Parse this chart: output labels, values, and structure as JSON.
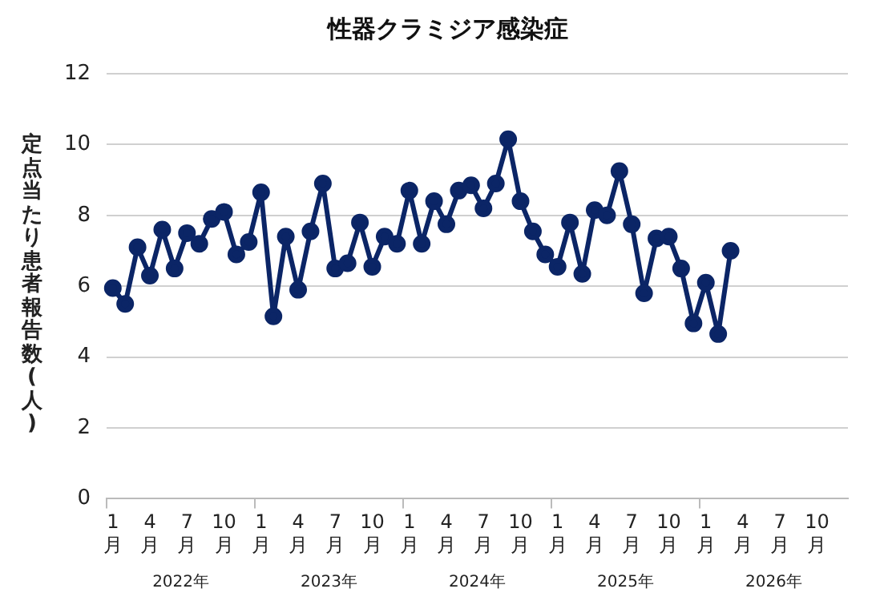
{
  "chart_data": {
    "type": "line",
    "title": "性器クラミジア感染症",
    "ylabel": "定点当たり患者報告数(人)",
    "categories": [
      "1月",
      null,
      null,
      "4月",
      null,
      null,
      "7月",
      null,
      null,
      "10月",
      null,
      null,
      "1月",
      null,
      null,
      "4月",
      null,
      null,
      "7月",
      null,
      null,
      "10月",
      null,
      null,
      "1月",
      null,
      null,
      "4月",
      null,
      null,
      "7月",
      null,
      null,
      "10月",
      null,
      null,
      "1月",
      null,
      null,
      "4月",
      null,
      null,
      "7月",
      null,
      null,
      "10月",
      null,
      null,
      "1月",
      null,
      null,
      "4月",
      null,
      null,
      "7月",
      null,
      null,
      "10月",
      null,
      null
    ],
    "series": [
      {
        "color": "#0b2566",
        "values": [
          5.95,
          5.5,
          7.1,
          6.3,
          7.6,
          6.5,
          7.5,
          7.2,
          7.9,
          8.1,
          6.9,
          7.25,
          8.65,
          5.15,
          7.4,
          5.9,
          7.55,
          8.9,
          6.5,
          6.65,
          7.8,
          6.55,
          7.4,
          7.2,
          8.7,
          7.2,
          8.4,
          7.75,
          8.7,
          8.85,
          8.2,
          8.9,
          10.15,
          8.4,
          7.55,
          6.9,
          6.55,
          7.8,
          6.35,
          8.15,
          8.0,
          9.25,
          7.75,
          5.8,
          7.35,
          7.4,
          6.5,
          4.95,
          6.1,
          4.65,
          7.0,
          null,
          null,
          null,
          null,
          null,
          null,
          null,
          null,
          null
        ]
      }
    ],
    "ylim": [
      0,
      12
    ],
    "yticks": [
      0,
      2,
      4,
      6,
      8,
      10,
      12
    ],
    "grid": "y",
    "legend": false,
    "marker": "circle",
    "line_style": "solid",
    "annotations": [
      "2022年",
      "2023年",
      "2024年",
      "2025年",
      "2026年"
    ]
  }
}
